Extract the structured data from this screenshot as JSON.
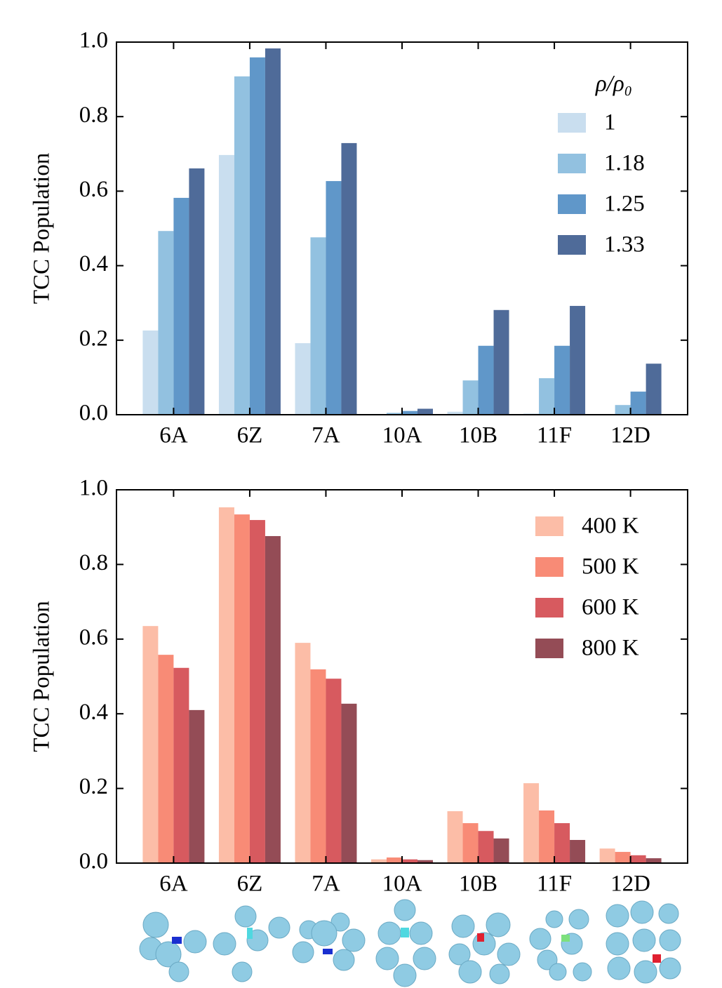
{
  "chart_data": [
    {
      "type": "bar",
      "ylabel": "TCC Population",
      "categories": [
        "6A",
        "6Z",
        "7A",
        "10A",
        "10B",
        "11F",
        "12D"
      ],
      "series": [
        {
          "name": "1",
          "color": "#c9deef",
          "values": [
            0.226,
            0.697,
            0.192,
            0.002,
            0.008,
            0.003,
            0.0
          ]
        },
        {
          "name": "1.18",
          "color": "#92c1e0",
          "values": [
            0.493,
            0.908,
            0.476,
            0.005,
            0.092,
            0.098,
            0.026
          ]
        },
        {
          "name": "1.25",
          "color": "#6097c9",
          "values": [
            0.582,
            0.959,
            0.627,
            0.01,
            0.185,
            0.185,
            0.062
          ]
        },
        {
          "name": "1.33",
          "color": "#4f6b99",
          "values": [
            0.661,
            0.983,
            0.729,
            0.016,
            0.281,
            0.292,
            0.137
          ]
        }
      ],
      "legend_title": "ρ/ρ₀",
      "legend": "upper right",
      "ylim": [
        0,
        1
      ],
      "yticks": [
        {
          "value": 0,
          "label": "0.0"
        },
        {
          "value": 0.2,
          "label": "0.2"
        },
        {
          "value": 0.4,
          "label": "0.4"
        },
        {
          "value": 0.6,
          "label": "0.6"
        },
        {
          "value": 0.8,
          "label": "0.8"
        },
        {
          "value": 1,
          "label": "1.0"
        }
      ]
    },
    {
      "type": "bar",
      "ylabel": "TCC Population",
      "categories": [
        "6A",
        "6Z",
        "7A",
        "10A",
        "10B",
        "11F",
        "12D"
      ],
      "series": [
        {
          "name": "400 K",
          "color": "#fcbda7",
          "values": [
            0.635,
            0.953,
            0.59,
            0.01,
            0.139,
            0.214,
            0.039
          ]
        },
        {
          "name": "500 K",
          "color": "#f88b76",
          "values": [
            0.558,
            0.934,
            0.519,
            0.015,
            0.107,
            0.141,
            0.03
          ]
        },
        {
          "name": "600 K",
          "color": "#d75a5f",
          "values": [
            0.523,
            0.919,
            0.494,
            0.01,
            0.086,
            0.107,
            0.021
          ]
        },
        {
          "name": "800 K",
          "color": "#944c56",
          "values": [
            0.41,
            0.876,
            0.427,
            0.008,
            0.066,
            0.062,
            0.013
          ]
        }
      ],
      "legend": "upper right",
      "ylim": [
        0,
        1
      ],
      "yticks": [
        {
          "value": 0,
          "label": "0.0"
        },
        {
          "value": 0.2,
          "label": "0.2"
        },
        {
          "value": 0.4,
          "label": "0.4"
        },
        {
          "value": 0.6,
          "label": "0.6"
        },
        {
          "value": 0.8,
          "label": "0.8"
        },
        {
          "value": 1,
          "label": "1.0"
        }
      ]
    }
  ]
}
